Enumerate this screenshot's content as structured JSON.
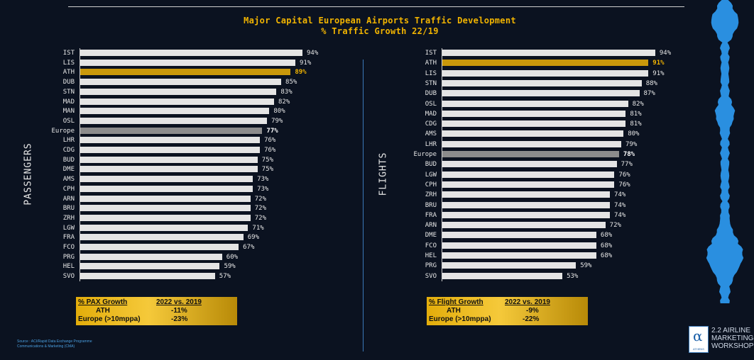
{
  "title": {
    "line1": "Major Capital European Airports Traffic Development",
    "line2": "% Traffic Growth 22/19"
  },
  "colors": {
    "accent": "#f2b400",
    "highlight_bar": "#c9980b",
    "europe_bar": "#8c8c8c",
    "bar": "#e4e4e4",
    "background": "#0b1220",
    "waveform": "#2a8fe0"
  },
  "chart_data": [
    {
      "type": "bar",
      "orientation": "horizontal",
      "panel_label": "PASSENGERS",
      "highlight": "ATH",
      "reference": "Europe",
      "categories": [
        "IST",
        "LIS",
        "ATH",
        "DUB",
        "STN",
        "MAD",
        "MAN",
        "OSL",
        "Europe",
        "LHR",
        "CDG",
        "BUD",
        "DME",
        "AMS",
        "CPH",
        "ARN",
        "BRU",
        "ZRH",
        "LGW",
        "FRA",
        "FCO",
        "PRG",
        "HEL",
        "SVO"
      ],
      "values": [
        94,
        91,
        89,
        85,
        83,
        82,
        80,
        79,
        77,
        76,
        76,
        75,
        75,
        73,
        73,
        72,
        72,
        72,
        71,
        69,
        67,
        60,
        59,
        57
      ],
      "value_suffix": "%",
      "xlim": [
        0,
        100
      ]
    },
    {
      "type": "bar",
      "orientation": "horizontal",
      "panel_label": "FLIGHTS",
      "highlight": "ATH",
      "reference": "Europe",
      "categories": [
        "IST",
        "ATH",
        "LIS",
        "STN",
        "DUB",
        "OSL",
        "MAD",
        "CDG",
        "AMS",
        "LHR",
        "Europe",
        "BUD",
        "LGW",
        "CPH",
        "ZRH",
        "BRU",
        "FRA",
        "ARN",
        "DME",
        "FCO",
        "HEL",
        "PRG",
        "SVO"
      ],
      "values": [
        94,
        91,
        91,
        88,
        87,
        82,
        81,
        81,
        80,
        79,
        78,
        77,
        76,
        76,
        74,
        74,
        74,
        72,
        68,
        68,
        68,
        59,
        53
      ],
      "value_suffix": "%",
      "xlim": [
        0,
        100
      ]
    }
  ],
  "summaries": [
    {
      "header_label": "% PAX Growth",
      "header_value": "2022  vs. 2019",
      "rows": [
        {
          "label": "ATH",
          "value": "-11%"
        },
        {
          "label": "Europe (>10mppa)",
          "value": "-23%"
        }
      ]
    },
    {
      "header_label": "% Flight Growth",
      "header_value": "2022  vs. 2019",
      "rows": [
        {
          "label": "ATH",
          "value": "-9%"
        },
        {
          "label": "Europe (>10mppa)",
          "value": "-22%"
        }
      ]
    }
  ],
  "source": {
    "line1": "Source : ACI/Rapid Data Exchange Programme",
    "line2": "Communications & Marketing (CMA)"
  },
  "logo": {
    "mark": "α",
    "text": "ATHENS"
  },
  "workshop": {
    "line1": "2.2 AIRLINE",
    "line2": "MARKETING",
    "line3": "WORKSHOP"
  }
}
